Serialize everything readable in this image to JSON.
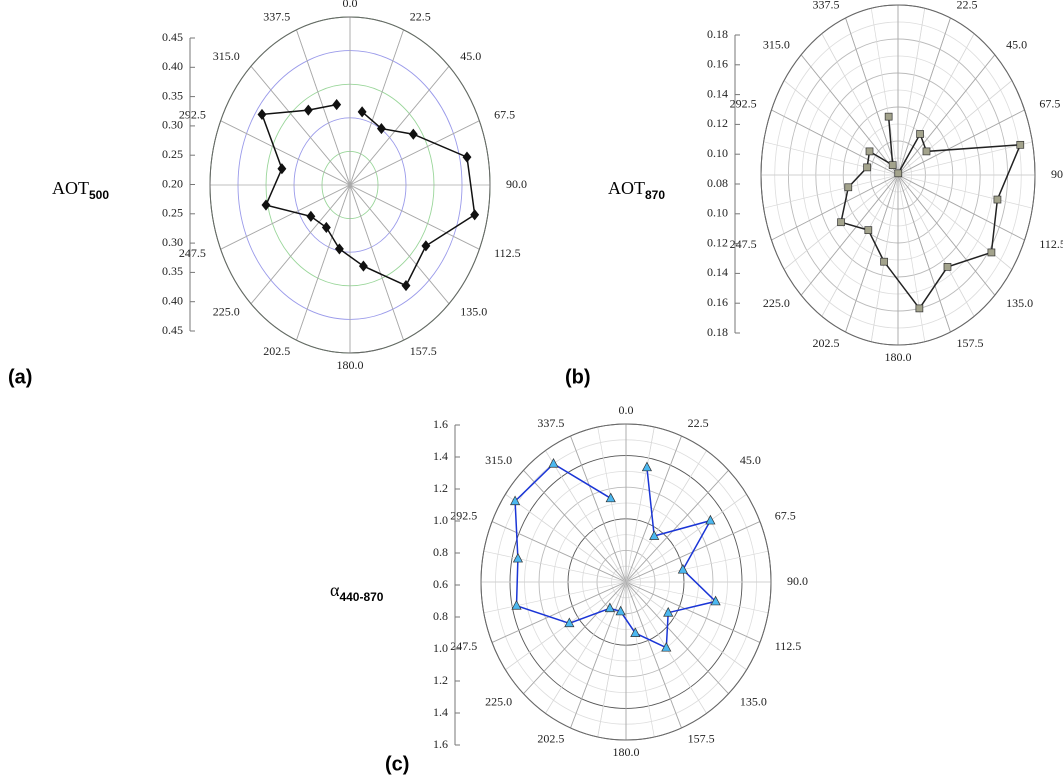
{
  "chart_data": [
    {
      "type": "polar",
      "panel_label": "(a)",
      "y_label": "AOT",
      "y_label_sub": "500",
      "x": [
        11.25,
        33.75,
        56.25,
        78.75,
        101.25,
        123.75,
        146.25,
        168.75,
        191.25,
        213.75,
        236.25,
        258.75,
        281.25,
        303.75,
        326.25,
        348.75
      ],
      "values": [
        0.311,
        0.301,
        0.336,
        0.413,
        0.427,
        0.363,
        0.38,
        0.323,
        0.297,
        0.276,
        0.284,
        0.353,
        0.324,
        0.389,
        0.334,
        0.322
      ],
      "rlim": [
        0.2,
        0.45
      ],
      "rticks": [
        {
          "value": 0.2,
          "label": "0.20"
        },
        0.25,
        {
          "value": 0.3,
          "label": "0.30"
        },
        0.35,
        {
          "value": 0.4,
          "label": "0.40"
        },
        0.45
      ],
      "angle_ticks": [
        {
          "value": 0,
          "label": "0.0"
        },
        22.5,
        {
          "value": 45,
          "label": "45.0"
        },
        67.5,
        {
          "value": 90,
          "label": "90.0"
        },
        112.5,
        {
          "value": 135,
          "label": "135.0"
        },
        157.5,
        {
          "value": 180,
          "label": "180.0"
        },
        202.5,
        {
          "value": 225,
          "label": "225.0"
        },
        247.5,
        292.5,
        {
          "value": 315,
          "label": "315.0"
        },
        337.5
      ],
      "color": "#111111",
      "marker": "diamond",
      "marker_color": "#111111",
      "grid_colors": [
        "#9a9aea",
        "#9ad69a"
      ],
      "minor_grid": false
    },
    {
      "type": "polar",
      "panel_label": "(b)",
      "y_label": "AOT",
      "y_label_sub": "870",
      "x": [
        11.25,
        33.75,
        56.25,
        78.75,
        101.25,
        123.75,
        146.25,
        168.75,
        191.25,
        213.75,
        236.25,
        258.75,
        281.25,
        303.75,
        326.25,
        348.75
      ],
      "values": [
        0.081,
        0.109,
        0.105,
        0.171,
        0.154,
        0.162,
        0.145,
        0.16,
        0.132,
        0.119,
        0.13,
        0.117,
        0.103,
        0.105,
        0.087,
        0.115
      ],
      "rlim": [
        0.08,
        0.18
      ],
      "rticks": [
        0.08,
        {
          "value": 0.1,
          "label": "0.10"
        },
        0.12,
        0.14,
        0.16,
        0.18
      ],
      "angle_ticks": [
        {
          "value": 0,
          "label": "0.0"
        },
        22.5,
        {
          "value": 45,
          "label": "45.0"
        },
        67.5,
        {
          "value": 90,
          "label": "90.0"
        },
        112.5,
        {
          "value": 135,
          "label": "135.0"
        },
        157.5,
        {
          "value": 180,
          "label": "180.0"
        },
        202.5,
        {
          "value": 225,
          "label": "225.0"
        },
        247.5,
        292.5,
        {
          "value": 315,
          "label": "315.0"
        },
        337.5
      ],
      "color": "#222222",
      "marker": "square",
      "marker_color": "#a3a38c",
      "grid_colors": [
        "#bbbbbb"
      ],
      "minor_grid": true
    },
    {
      "type": "polar",
      "panel_label": "(c)",
      "y_label": "α",
      "y_label_sub": "440-870",
      "x": [
        11.25,
        33.75,
        56.25,
        78.75,
        101.25,
        123.75,
        146.25,
        168.75,
        191.25,
        213.75,
        236.25,
        258.75,
        281.25,
        303.75,
        326.25,
        348.75
      ],
      "values": [
        1.34,
        0.95,
        1.3,
        1.0,
        1.23,
        0.95,
        1.1,
        0.93,
        0.79,
        0.8,
        1.07,
        1.37,
        1.36,
        1.52,
        1.5,
        1.14
      ],
      "rlim": [
        0.6,
        1.6
      ],
      "rticks": [
        0.6,
        0.8,
        {
          "value": 1,
          "label": "1.0"
        },
        1.2,
        1.4,
        1.6
      ],
      "angle_ticks": [
        {
          "value": 0,
          "label": "0.0"
        },
        22.5,
        {
          "value": 45,
          "label": "45.0"
        },
        67.5,
        {
          "value": 90,
          "label": "90.0"
        },
        112.5,
        {
          "value": 135,
          "label": "135.0"
        },
        157.5,
        {
          "value": 180,
          "label": "180.0"
        },
        202.5,
        {
          "value": 225,
          "label": "225.0"
        },
        247.5,
        292.5,
        {
          "value": 315,
          "label": "315.0"
        },
        337.5
      ],
      "color": "#1a35d6",
      "marker": "triangle",
      "marker_color": "#4cb8f0",
      "grid_colors": [
        "#555555",
        "#bbbbbb"
      ],
      "minor_grid": true
    }
  ]
}
